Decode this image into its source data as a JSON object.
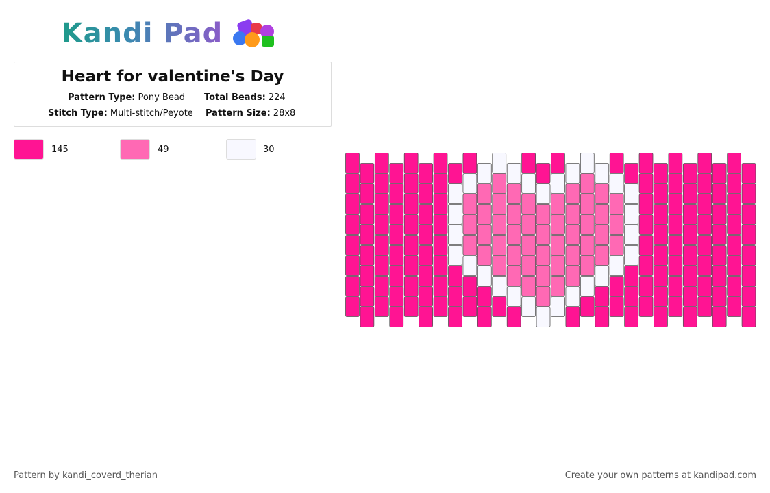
{
  "logo": "Kandi Pad",
  "pattern": {
    "title": "Heart for valentine's Day",
    "details": [
      {
        "label": "Pattern Type:",
        "value": "Pony Bead"
      },
      {
        "label": "Total Beads:",
        "value": "224"
      },
      {
        "label": "Stitch Type:",
        "value": "Multi-stitch/Peyote"
      },
      {
        "label": "Pattern Size:",
        "value": "28x8"
      }
    ]
  },
  "colors": [
    {
      "color": "#ff1493",
      "count": "145"
    },
    {
      "color": "#ff69b4",
      "count": "49"
    },
    {
      "color": "#f8f8ff",
      "count": "30"
    }
  ],
  "footer": {
    "author": "Pattern by kandi_coverd_therian",
    "credit": "Create your own patterns at kandipad.com"
  }
}
